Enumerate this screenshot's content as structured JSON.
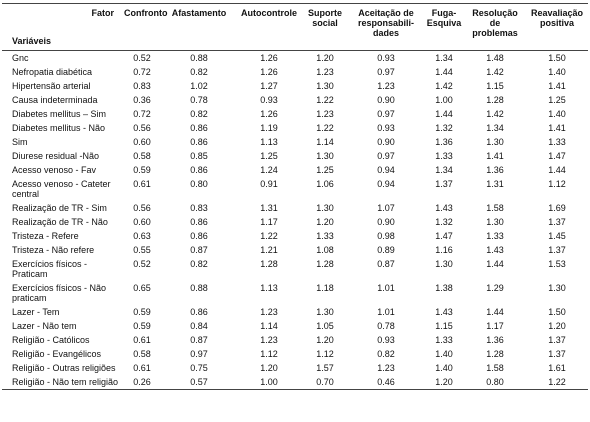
{
  "table": {
    "corner": {
      "top": "Fator",
      "bottom": "Variáveis"
    },
    "columns": [
      "Confronto",
      "Afastamento",
      "Autocontrole",
      "Suporte social",
      "Aceitação de responsabili-dades",
      "Fuga-Esquiva",
      "Resolução de problemas",
      "Reavaliação positiva"
    ],
    "rows": [
      [
        "Gnc",
        "0.52",
        "0.88",
        "1.26",
        "1.20",
        "0.93",
        "1.34",
        "1.48",
        "1.50"
      ],
      [
        "Nefropatia diabética",
        "0.72",
        "0.82",
        "1.26",
        "1.23",
        "0.97",
        "1.44",
        "1.42",
        "1.40"
      ],
      [
        "Hipertensão arterial",
        "0.83",
        "1.02",
        "1.27",
        "1.30",
        "1.23",
        "1.42",
        "1.15",
        "1.41"
      ],
      [
        "Causa indeterminada",
        "0.36",
        "0.78",
        "0.93",
        "1.22",
        "0.90",
        "1.00",
        "1.28",
        "1.25"
      ],
      [
        "Diabetes mellitus – Sim",
        "0.72",
        "0.82",
        "1.26",
        "1.23",
        "0.97",
        "1.44",
        "1.42",
        "1.40"
      ],
      [
        "Diabetes mellitus - Não",
        "0.56",
        "0.86",
        "1.19",
        "1.22",
        "0.93",
        "1.32",
        "1.34",
        "1.41"
      ],
      [
        "Sim",
        "0.60",
        "0.86",
        "1.13",
        "1.14",
        "0.90",
        "1.36",
        "1.30",
        "1.33"
      ],
      [
        "Diurese residual -Não",
        "0.58",
        "0.85",
        "1.25",
        "1.30",
        "0.97",
        "1.33",
        "1.41",
        "1.47"
      ],
      [
        "Acesso venoso - Fav",
        "0.59",
        "0.86",
        "1.24",
        "1.25",
        "0.94",
        "1.34",
        "1.36",
        "1.44"
      ],
      [
        "Acesso venoso - Cateter central",
        "0.61",
        "0.80",
        "0.91",
        "1.06",
        "0.94",
        "1.37",
        "1.31",
        "1.12"
      ],
      [
        "Realização de TR - Sim",
        "0.56",
        "0.83",
        "1.31",
        "1.30",
        "1.07",
        "1.43",
        "1.58",
        "1.69"
      ],
      [
        "Realização de TR - Não",
        "0.60",
        "0.86",
        "1.17",
        "1.20",
        "0.90",
        "1.32",
        "1.30",
        "1.37"
      ],
      [
        "Tristeza - Refere",
        "0.63",
        "0.86",
        "1.22",
        "1.33",
        "0.98",
        "1.47",
        "1.33",
        "1.45"
      ],
      [
        "Tristeza - Não refere",
        "0.55",
        "0.87",
        "1.21",
        "1.08",
        "0.89",
        "1.16",
        "1.43",
        "1.37"
      ],
      [
        "Exercícios físicos - Praticam",
        "0.52",
        "0.82",
        "1.28",
        "1.28",
        "0.87",
        "1.30",
        "1.44",
        "1.53"
      ],
      [
        "Exercícios físicos - Não praticam",
        "0.65",
        "0.88",
        "1.13",
        "1.18",
        "1.01",
        "1.38",
        "1.29",
        "1.30"
      ],
      [
        "Lazer - Tem",
        "0.59",
        "0.86",
        "1.23",
        "1.30",
        "1.01",
        "1.43",
        "1.44",
        "1.50"
      ],
      [
        "Lazer - Não tem",
        "0.59",
        "0.84",
        "1.14",
        "1.05",
        "0.78",
        "1.15",
        "1.17",
        "1.20"
      ],
      [
        "Religião - Católicos",
        "0.61",
        "0.87",
        "1.23",
        "1.20",
        "0.93",
        "1.33",
        "1.36",
        "1.37"
      ],
      [
        "Religião - Evangélicos",
        "0.58",
        "0.97",
        "1.12",
        "1.12",
        "0.82",
        "1.40",
        "1.28",
        "1.37"
      ],
      [
        "Religião - Outras religiões",
        "0.61",
        "0.75",
        "1.20",
        "1.57",
        "1.23",
        "1.40",
        "1.58",
        "1.61"
      ],
      [
        "Religião - Não tem religião",
        "0.26",
        "0.57",
        "1.00",
        "0.70",
        "0.46",
        "1.20",
        "0.80",
        "1.22"
      ]
    ]
  }
}
